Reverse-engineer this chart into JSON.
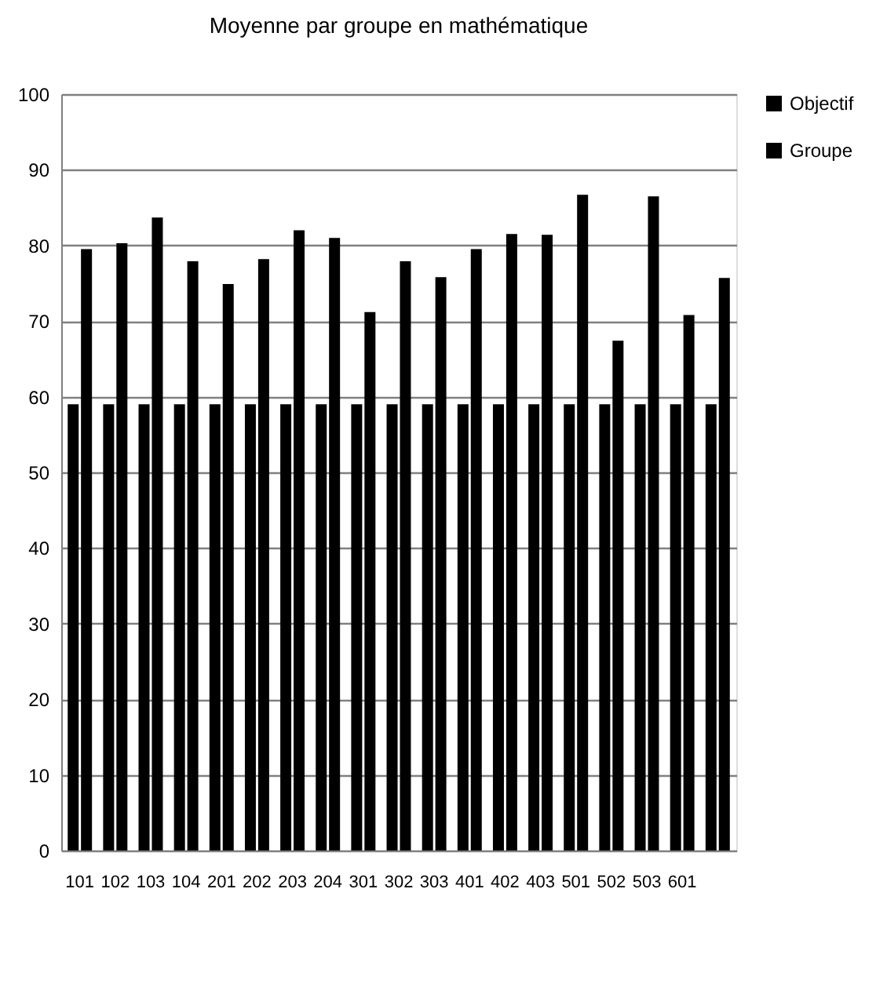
{
  "chart_data": {
    "type": "bar",
    "title": "Moyenne par groupe en mathématique",
    "categories": [
      "101",
      "102",
      "103",
      "104",
      "201",
      "202",
      "203",
      "204",
      "301",
      "302",
      "303",
      "401",
      "402",
      "403",
      "501",
      "502",
      "503",
      "601",
      null
    ],
    "series": [
      {
        "name": "Objectif",
        "color": "#000000",
        "values": [
          59,
          59,
          59,
          59,
          59,
          59,
          59,
          59,
          59,
          59,
          59,
          59,
          59,
          59,
          59,
          59,
          59,
          59,
          59
        ]
      },
      {
        "name": "Groupe",
        "color": "#000000",
        "values": [
          79.5,
          80.3,
          83.7,
          77.9,
          74.9,
          78.2,
          82.0,
          81.0,
          71.2,
          77.9,
          75.8,
          79.5,
          81.5,
          81.4,
          86.7,
          67.4,
          86.5,
          70.8,
          75.7
        ]
      }
    ],
    "ylim": [
      0,
      100
    ],
    "yticks": [
      0,
      10,
      20,
      30,
      40,
      50,
      60,
      70,
      80,
      90,
      100
    ],
    "grid": "y",
    "legend": "right"
  }
}
